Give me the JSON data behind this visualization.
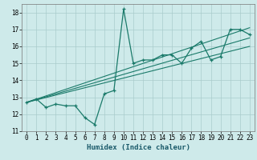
{
  "title": "",
  "xlabel": "Humidex (Indice chaleur)",
  "xlim": [
    -0.5,
    23.5
  ],
  "ylim": [
    11,
    18.5
  ],
  "yticks": [
    11,
    12,
    13,
    14,
    15,
    16,
    17,
    18
  ],
  "xticks": [
    0,
    1,
    2,
    3,
    4,
    5,
    6,
    7,
    8,
    9,
    10,
    11,
    12,
    13,
    14,
    15,
    16,
    17,
    18,
    19,
    20,
    21,
    22,
    23
  ],
  "bg_color": "#ceeaea",
  "grid_color": "#aacccc",
  "line_color": "#1a7a6a",
  "line1_x": [
    0,
    1,
    2,
    3,
    4,
    5,
    6,
    7,
    8,
    9,
    10,
    11,
    12,
    13,
    14,
    15,
    16,
    17,
    18,
    19,
    20,
    21,
    22,
    23
  ],
  "line1_y": [
    12.7,
    12.9,
    12.4,
    12.6,
    12.5,
    12.5,
    11.8,
    11.4,
    13.2,
    13.4,
    18.2,
    15.0,
    15.2,
    15.2,
    15.5,
    15.5,
    15.0,
    15.9,
    16.3,
    15.2,
    15.4,
    17.0,
    17.0,
    16.7
  ],
  "trend1_x": [
    0,
    23
  ],
  "trend1_y": [
    12.7,
    17.1
  ],
  "trend2_x": [
    0,
    23
  ],
  "trend2_y": [
    12.7,
    16.5
  ],
  "trend3_x": [
    0,
    23
  ],
  "trend3_y": [
    12.7,
    16.0
  ],
  "xlabel_fontsize": 6.5,
  "tick_fontsize": 5.5
}
